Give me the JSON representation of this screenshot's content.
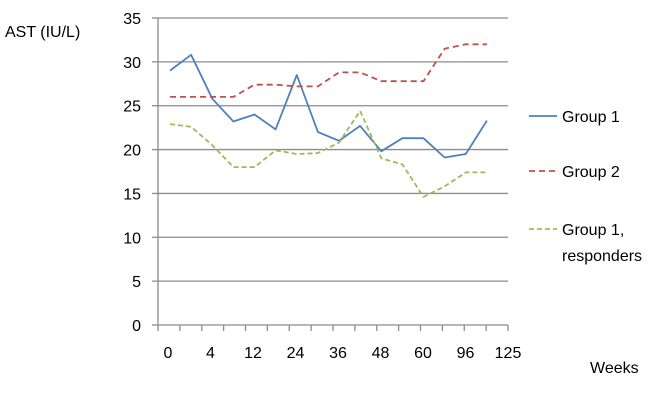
{
  "chart_data": {
    "type": "line",
    "title": "",
    "ylabel": "AST (IU/L)",
    "xlabel": "Weeks",
    "ylim": [
      0,
      35
    ],
    "yticks": [
      0,
      5,
      10,
      15,
      20,
      25,
      30,
      35
    ],
    "grid": "horizontal",
    "legend_position": "right",
    "categories": [
      "0",
      "",
      "4",
      "",
      "12",
      "",
      "24",
      "",
      "36",
      "",
      "48",
      "",
      "60",
      "",
      "96",
      "",
      "125"
    ],
    "series": [
      {
        "name": "Group 1",
        "style": "solid",
        "color": "#4f81bd",
        "values": [
          29.0,
          30.8,
          25.8,
          23.2,
          24.0,
          22.3,
          28.5,
          22.0,
          21.0,
          22.7,
          19.8,
          21.3,
          21.3,
          19.1,
          19.5,
          23.3,
          null
        ]
      },
      {
        "name": "Group 2",
        "style": "dashed",
        "color": "#c0504d",
        "values": [
          26.0,
          26.0,
          26.0,
          26.0,
          27.4,
          27.4,
          27.2,
          27.2,
          28.8,
          28.8,
          27.8,
          27.8,
          27.8,
          31.5,
          32.0,
          32.0,
          null
        ]
      },
      {
        "name": "Group 1, responders",
        "style": "dashed",
        "color": "#9bbb59",
        "values": [
          22.9,
          22.6,
          20.5,
          18.0,
          18.0,
          19.9,
          19.5,
          19.6,
          20.8,
          24.4,
          19.0,
          18.3,
          14.6,
          15.8,
          17.4,
          17.4,
          null
        ]
      }
    ]
  }
}
